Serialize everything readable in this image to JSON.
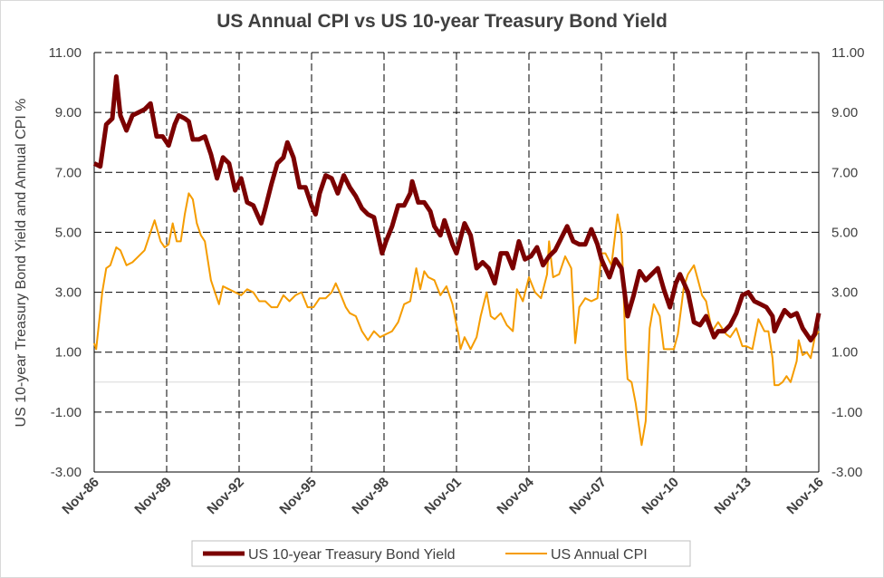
{
  "chart_data": {
    "type": "line",
    "title": "US Annual CPI vs US 10-year Treasury Bond Yield",
    "ylabel": "US 10-year Treasury Bond Yield and Annual CPI %",
    "xlabel": "",
    "ylim": [
      -3,
      11
    ],
    "y_ticks": [
      "11.00",
      "9.00",
      "7.00",
      "5.00",
      "3.00",
      "1.00",
      "-1.00",
      "-3.00"
    ],
    "y_tick_values": [
      11,
      9,
      7,
      5,
      3,
      1,
      -1,
      -3
    ],
    "x_ticks": [
      "Nov-86",
      "Nov-89",
      "Nov-92",
      "Nov-95",
      "Nov-98",
      "Nov-01",
      "Nov-04",
      "Nov-07",
      "Nov-10",
      "Nov-13",
      "Nov-16"
    ],
    "x_tick_dates": [
      "1986-11",
      "1989-11",
      "1992-11",
      "1995-11",
      "1998-11",
      "2001-11",
      "2004-11",
      "2007-11",
      "2010-11",
      "2013-11",
      "2016-11"
    ],
    "xlim": [
      "1986-11",
      "2016-11"
    ],
    "grid": true,
    "secondary_axis": true,
    "legend_position": "bottom",
    "colors": {
      "yield": "#7b0000",
      "cpi": "#f59c00",
      "zero_line": "#d9d9d9"
    },
    "series": [
      {
        "name": "US 10-year Treasury Bond Yield",
        "x": [
          "1986-11",
          "1987-02",
          "1987-05",
          "1987-08",
          "1987-10",
          "1987-12",
          "1988-03",
          "1988-06",
          "1988-09",
          "1988-12",
          "1989-03",
          "1989-06",
          "1989-09",
          "1989-12",
          "1990-03",
          "1990-05",
          "1990-08",
          "1990-10",
          "1990-12",
          "1991-03",
          "1991-06",
          "1991-09",
          "1991-12",
          "1992-03",
          "1992-06",
          "1992-09",
          "1992-12",
          "1993-03",
          "1993-06",
          "1993-10",
          "1993-12",
          "1994-03",
          "1994-06",
          "1994-09",
          "1994-11",
          "1995-02",
          "1995-05",
          "1995-08",
          "1995-11",
          "1996-01",
          "1996-03",
          "1996-06",
          "1996-09",
          "1996-12",
          "1997-03",
          "1997-06",
          "1997-09",
          "1997-12",
          "1998-03",
          "1998-06",
          "1998-09",
          "1998-10",
          "1998-12",
          "1999-03",
          "1999-06",
          "1999-09",
          "1999-12",
          "2000-01",
          "2000-04",
          "2000-07",
          "2000-10",
          "2000-12",
          "2001-03",
          "2001-05",
          "2001-09",
          "2001-11",
          "2002-03",
          "2002-06",
          "2002-09",
          "2002-12",
          "2003-03",
          "2003-06",
          "2003-09",
          "2003-12",
          "2004-03",
          "2004-06",
          "2004-09",
          "2004-12",
          "2005-03",
          "2005-06",
          "2005-09",
          "2005-12",
          "2006-03",
          "2006-06",
          "2006-09",
          "2006-12",
          "2007-03",
          "2007-06",
          "2007-09",
          "2007-11",
          "2008-03",
          "2008-06",
          "2008-09",
          "2008-12",
          "2009-03",
          "2009-06",
          "2009-09",
          "2009-12",
          "2010-03",
          "2010-06",
          "2010-09",
          "2010-12",
          "2011-02",
          "2011-06",
          "2011-09",
          "2011-12",
          "2012-03",
          "2012-07",
          "2012-09",
          "2012-12",
          "2013-03",
          "2013-06",
          "2013-09",
          "2013-12",
          "2014-03",
          "2014-06",
          "2014-09",
          "2014-12",
          "2015-01",
          "2015-03",
          "2015-06",
          "2015-09",
          "2015-12",
          "2016-03",
          "2016-07",
          "2016-09",
          "2016-11"
        ],
        "values": [
          7.3,
          7.2,
          8.6,
          8.8,
          10.2,
          8.9,
          8.4,
          8.9,
          9.0,
          9.1,
          9.3,
          8.2,
          8.2,
          7.9,
          8.6,
          8.9,
          8.8,
          8.7,
          8.1,
          8.1,
          8.2,
          7.6,
          6.8,
          7.5,
          7.3,
          6.4,
          6.8,
          6.0,
          5.9,
          5.3,
          5.8,
          6.6,
          7.3,
          7.5,
          8.0,
          7.5,
          6.5,
          6.5,
          5.9,
          5.6,
          6.3,
          6.9,
          6.8,
          6.3,
          6.9,
          6.5,
          6.2,
          5.8,
          5.6,
          5.5,
          4.6,
          4.3,
          4.7,
          5.2,
          5.9,
          5.9,
          6.3,
          6.7,
          6.0,
          6.0,
          5.7,
          5.2,
          4.9,
          5.4,
          4.6,
          4.3,
          5.3,
          4.9,
          3.8,
          4.0,
          3.8,
          3.3,
          4.3,
          4.3,
          3.8,
          4.7,
          4.1,
          4.2,
          4.5,
          3.9,
          4.2,
          4.4,
          4.8,
          5.2,
          4.7,
          4.6,
          4.6,
          5.1,
          4.6,
          4.1,
          3.5,
          4.1,
          3.8,
          2.2,
          2.9,
          3.7,
          3.4,
          3.6,
          3.8,
          3.1,
          2.5,
          3.3,
          3.6,
          3.0,
          2.0,
          1.9,
          2.2,
          1.5,
          1.7,
          1.7,
          1.9,
          2.3,
          2.9,
          3.0,
          2.7,
          2.6,
          2.5,
          2.2,
          1.7,
          2.0,
          2.4,
          2.2,
          2.3,
          1.8,
          1.4,
          1.6,
          2.3
        ]
      },
      {
        "name": "US Annual CPI",
        "x": [
          "1986-11",
          "1986-12",
          "1987-03",
          "1987-05",
          "1987-07",
          "1987-10",
          "1987-12",
          "1988-03",
          "1988-06",
          "1988-09",
          "1988-12",
          "1989-03",
          "1989-05",
          "1989-08",
          "1989-10",
          "1989-12",
          "1990-02",
          "1990-04",
          "1990-06",
          "1990-08",
          "1990-10",
          "1990-12",
          "1991-02",
          "1991-04",
          "1991-06",
          "1991-09",
          "1991-11",
          "1992-01",
          "1992-03",
          "1992-06",
          "1992-09",
          "1992-12",
          "1993-03",
          "1993-06",
          "1993-09",
          "1993-12",
          "1994-03",
          "1994-06",
          "1994-09",
          "1994-12",
          "1995-03",
          "1995-06",
          "1995-09",
          "1995-12",
          "1996-03",
          "1996-06",
          "1996-09",
          "1996-11",
          "1997-01",
          "1997-04",
          "1997-06",
          "1997-09",
          "1997-12",
          "1998-03",
          "1998-06",
          "1998-09",
          "1998-12",
          "1999-03",
          "1999-06",
          "1999-09",
          "1999-12",
          "2000-03",
          "2000-05",
          "2000-07",
          "2000-09",
          "2000-12",
          "2001-03",
          "2001-06",
          "2001-09",
          "2001-11",
          "2001-12",
          "2002-01",
          "2002-03",
          "2002-06",
          "2002-09",
          "2002-11",
          "2003-02",
          "2003-04",
          "2003-06",
          "2003-09",
          "2003-12",
          "2004-03",
          "2004-05",
          "2004-08",
          "2004-11",
          "2005-02",
          "2005-05",
          "2005-08",
          "2005-09",
          "2005-11",
          "2006-02",
          "2006-05",
          "2006-08",
          "2006-10",
          "2006-12",
          "2007-03",
          "2007-06",
          "2007-09",
          "2007-11",
          "2008-01",
          "2008-04",
          "2008-07",
          "2008-09",
          "2008-11",
          "2008-12",
          "2009-02",
          "2009-04",
          "2009-07",
          "2009-09",
          "2009-11",
          "2010-01",
          "2010-04",
          "2010-06",
          "2010-09",
          "2010-11",
          "2011-01",
          "2011-04",
          "2011-06",
          "2011-09",
          "2011-11",
          "2012-01",
          "2012-03",
          "2012-06",
          "2012-09",
          "2012-11",
          "2013-01",
          "2013-03",
          "2013-06",
          "2013-09",
          "2013-11",
          "2014-02",
          "2014-05",
          "2014-08",
          "2014-10",
          "2014-12",
          "2015-01",
          "2015-03",
          "2015-05",
          "2015-07",
          "2015-09",
          "2015-12",
          "2016-01",
          "2016-03",
          "2016-05",
          "2016-07",
          "2016-09",
          "2016-11"
        ],
        "values": [
          1.3,
          1.1,
          3.0,
          3.8,
          3.9,
          4.5,
          4.4,
          3.9,
          4.0,
          4.2,
          4.4,
          5.0,
          5.4,
          4.7,
          4.5,
          4.6,
          5.3,
          4.7,
          4.7,
          5.6,
          6.3,
          6.1,
          5.3,
          4.9,
          4.7,
          3.4,
          3.0,
          2.6,
          3.2,
          3.1,
          3.0,
          2.9,
          3.1,
          3.0,
          2.7,
          2.7,
          2.5,
          2.5,
          2.9,
          2.7,
          2.9,
          3.0,
          2.5,
          2.5,
          2.8,
          2.8,
          3.0,
          3.3,
          3.0,
          2.5,
          2.3,
          2.2,
          1.7,
          1.4,
          1.7,
          1.5,
          1.6,
          1.7,
          2.0,
          2.6,
          2.7,
          3.8,
          3.1,
          3.7,
          3.5,
          3.4,
          2.9,
          3.2,
          2.6,
          1.9,
          1.6,
          1.1,
          1.5,
          1.1,
          1.5,
          2.2,
          3.0,
          2.2,
          2.1,
          2.3,
          1.9,
          1.7,
          3.1,
          2.7,
          3.5,
          3.0,
          2.8,
          3.6,
          4.7,
          3.5,
          3.6,
          4.2,
          3.8,
          1.3,
          2.5,
          2.8,
          2.7,
          2.8,
          4.3,
          4.3,
          3.9,
          5.6,
          4.9,
          1.1,
          0.1,
          0.0,
          -0.7,
          -2.1,
          -1.3,
          1.8,
          2.6,
          2.2,
          1.1,
          1.1,
          1.1,
          1.6,
          3.2,
          3.6,
          3.9,
          3.4,
          2.9,
          2.7,
          1.7,
          2.0,
          1.8,
          1.6,
          1.5,
          1.8,
          1.2,
          1.2,
          1.1,
          2.1,
          1.7,
          1.7,
          0.8,
          -0.1,
          -0.1,
          0.0,
          0.2,
          0.0,
          0.7,
          1.4,
          0.9,
          1.0,
          0.8,
          1.5,
          1.7
        ]
      }
    ]
  }
}
